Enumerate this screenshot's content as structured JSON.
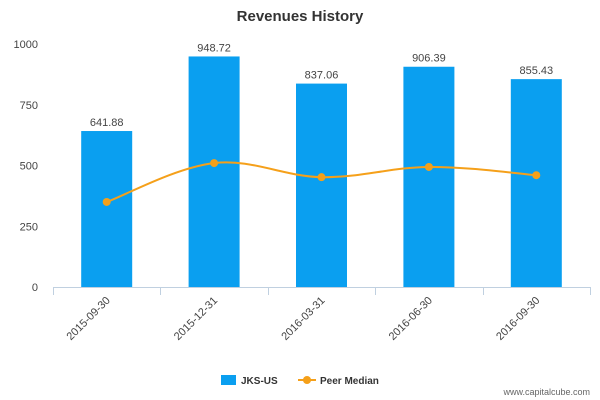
{
  "chart_data": {
    "type": "bar",
    "title": "Revenues History",
    "categories": [
      "2015-09-30",
      "2015-12-31",
      "2016-03-31",
      "2016-06-30",
      "2016-09-30"
    ],
    "series": [
      {
        "name": "JKS-US",
        "type": "bar",
        "values": [
          641.88,
          948.72,
          837.06,
          906.39,
          855.43
        ],
        "labels": [
          "641.88",
          "948.72",
          "837.06",
          "906.39",
          "855.43"
        ],
        "color": "#0a9ff0"
      },
      {
        "name": "Peer Median",
        "type": "line",
        "values": [
          350,
          510,
          452,
          494,
          460
        ],
        "color": "#f5a01a"
      }
    ],
    "ylim": [
      0,
      1000
    ],
    "yticks": [
      0,
      250,
      500,
      750,
      1000
    ],
    "ytick_labels": [
      "0",
      "250",
      "500",
      "750",
      "1000"
    ],
    "grid": false,
    "legend_position": "bottom"
  },
  "credit": "www.capitalcube.com"
}
